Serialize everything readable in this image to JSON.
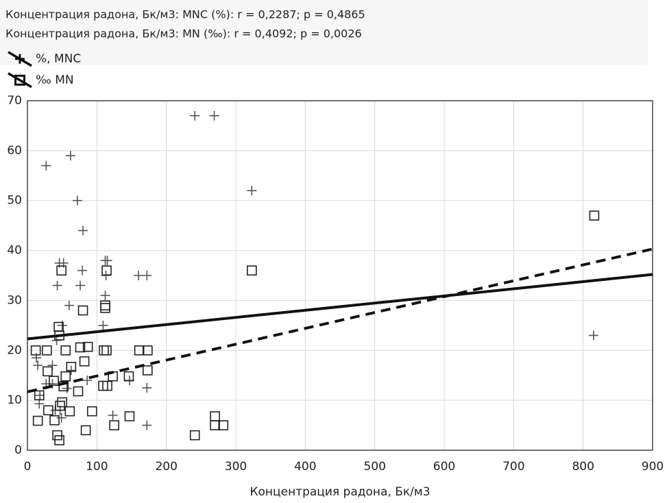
{
  "chart_data": {
    "type": "scatter",
    "legend_lines": [
      "Концентрация радона, Бк/м3: MNC (%): r = 0,2287; p = 0,4865",
      "Концентрация радона, Бк/м3: MN (‰): r = 0,4092; p = 0,0026"
    ],
    "x_label": "Концентрация радона, Бк/м3",
    "xlim": [
      0,
      900
    ],
    "xticks": [
      0,
      100,
      200,
      300,
      400,
      500,
      600,
      700,
      800,
      900
    ],
    "ylim": [
      0,
      70
    ],
    "yticks": [
      0,
      10,
      20,
      30,
      40,
      50,
      60,
      70
    ],
    "grid": true,
    "series": [
      {
        "name": "%, MNC",
        "marker": "plus",
        "color": "#555555",
        "line_style": "solid",
        "fit": {
          "x": [
            0,
            900
          ],
          "y": [
            22.3,
            35.2
          ]
        },
        "x": [
          241,
          269,
          27,
          62,
          323,
          72,
          80,
          79,
          76,
          43,
          46,
          52,
          112,
          115,
          113,
          160,
          172,
          60,
          112,
          109,
          50,
          42,
          15,
          36,
          63,
          86,
          172,
          147,
          17,
          123,
          172,
          815,
          27,
          36,
          57,
          18,
          40,
          47,
          49,
          13
        ],
        "values": [
          67,
          67,
          57,
          59,
          52,
          50,
          44,
          36,
          33,
          33,
          37.5,
          37.5,
          38,
          38,
          35,
          35,
          35,
          29,
          31,
          25,
          25,
          22,
          17,
          17,
          16,
          14,
          12.5,
          14,
          9.3,
          7,
          5,
          23,
          13.3,
          13.3,
          12.4,
          11,
          8,
          8,
          6.5,
          18.5
        ]
      },
      {
        "name": "‰ MN",
        "marker": "square",
        "color": "#222222",
        "line_style": "dashed",
        "fit": {
          "x": [
            0,
            900
          ],
          "y": [
            11.7,
            40.3
          ]
        },
        "x": [
          816,
          323,
          49,
          114,
          112,
          112,
          80,
          45,
          46,
          12,
          28,
          55,
          76,
          87,
          110,
          114,
          161,
          173,
          173,
          63,
          29,
          82,
          55,
          123,
          146,
          38,
          52,
          109,
          115,
          73,
          17,
          50,
          47,
          30,
          61,
          93,
          39,
          15,
          147,
          270,
          125,
          270,
          282,
          84,
          241,
          43,
          46
        ],
        "values": [
          47,
          36,
          36,
          36,
          29,
          28.5,
          28,
          24.7,
          23,
          20,
          20,
          20,
          20.6,
          20.7,
          20,
          20,
          20,
          20,
          16,
          16.7,
          15.8,
          17.8,
          14.8,
          14.8,
          14.8,
          13.9,
          12.8,
          12.9,
          12.9,
          11.8,
          11,
          9.6,
          8.9,
          8,
          7.8,
          7.8,
          6,
          5.9,
          6.8,
          6.8,
          5,
          5,
          5,
          4,
          3,
          3,
          2
        ]
      }
    ]
  }
}
